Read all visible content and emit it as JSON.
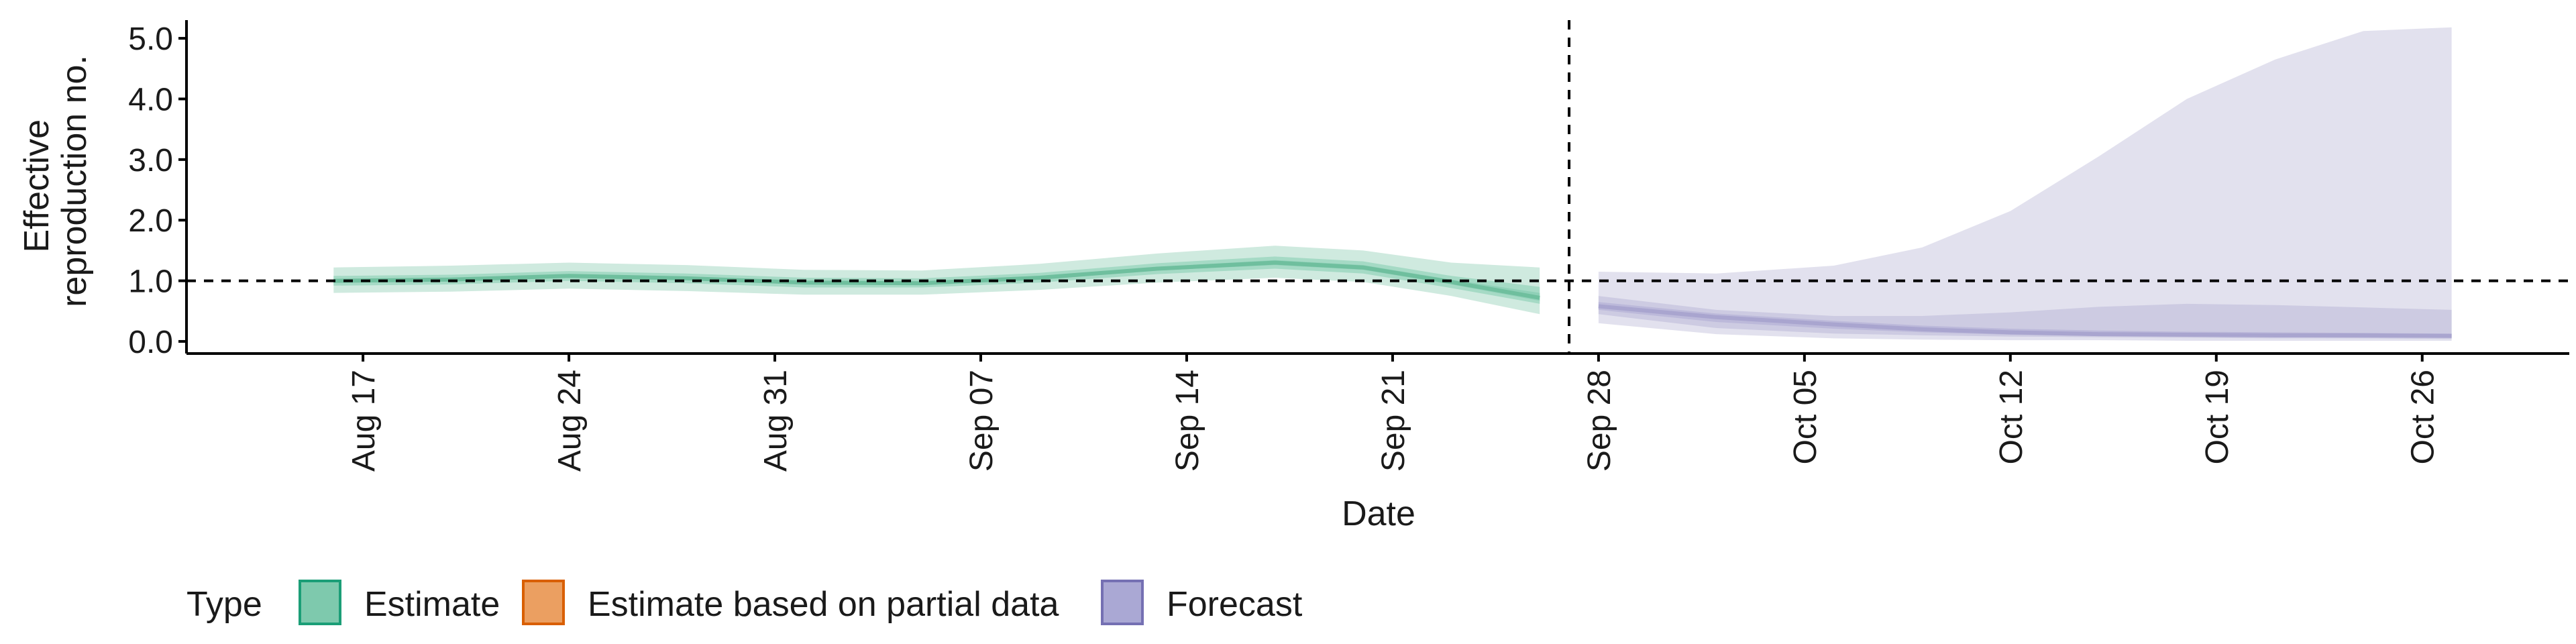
{
  "chart_data": {
    "type": "area",
    "xlabel": "Date",
    "ylabel": [
      "Effective",
      "reproduction no."
    ],
    "ylim": [
      -0.2,
      5.3
    ],
    "yticks": [
      0.0,
      1.0,
      2.0,
      3.0,
      4.0,
      5.0
    ],
    "ytick_labels": [
      "0.0",
      "1.0",
      "2.0",
      "3.0",
      "4.0",
      "5.0"
    ],
    "xlim": [
      "2020-08-11",
      "2020-10-31"
    ],
    "xticks": [
      "2020-08-17",
      "2020-08-24",
      "2020-08-31",
      "2020-09-07",
      "2020-09-14",
      "2020-09-21",
      "2020-09-28",
      "2020-10-05",
      "2020-10-12",
      "2020-10-19",
      "2020-10-26"
    ],
    "xtick_labels": [
      "Aug 17",
      "Aug 24",
      "Aug 31",
      "Sep 07",
      "Sep 14",
      "Sep 21",
      "Sep 28",
      "Oct 05",
      "Oct 12",
      "Oct 19",
      "Oct 26"
    ],
    "reference_hline": 1.0,
    "reference_vline": "2020-09-27",
    "grid": false,
    "legend": {
      "title": "Type",
      "placement": "bottom",
      "entries": [
        {
          "label": "Estimate",
          "fill": "#7ec9ad",
          "stroke": "#1b9e77"
        },
        {
          "label": "Estimate based on partial data",
          "fill": "#eb9f61",
          "stroke": "#d95f02"
        },
        {
          "label": "Forecast",
          "fill": "#aaa8d4",
          "stroke": "#7570b3"
        }
      ]
    },
    "series": [
      {
        "name": "Estimate",
        "colors": {
          "outer": "#cfeadf",
          "mid": "#a5dac5",
          "inner": "#8fd0b7",
          "median": "#6fbf9e"
        },
        "points": [
          {
            "x": "2020-08-16",
            "median": 1.0,
            "lo90": 0.8,
            "hi90": 1.22,
            "lo50": 0.92,
            "hi50": 1.08,
            "lo20": 0.97,
            "hi20": 1.03
          },
          {
            "x": "2020-08-20",
            "median": 1.02,
            "lo90": 0.82,
            "hi90": 1.25,
            "lo50": 0.94,
            "hi50": 1.1,
            "lo20": 0.99,
            "hi20": 1.05
          },
          {
            "x": "2020-08-24",
            "median": 1.08,
            "lo90": 0.87,
            "hi90": 1.3,
            "lo50": 1.0,
            "hi50": 1.16,
            "lo20": 1.05,
            "hi20": 1.11
          },
          {
            "x": "2020-08-28",
            "median": 1.04,
            "lo90": 0.83,
            "hi90": 1.26,
            "lo50": 0.96,
            "hi50": 1.12,
            "lo20": 1.01,
            "hi20": 1.07
          },
          {
            "x": "2020-09-01",
            "median": 0.97,
            "lo90": 0.77,
            "hi90": 1.18,
            "lo50": 0.89,
            "hi50": 1.05,
            "lo20": 0.94,
            "hi20": 1.0
          },
          {
            "x": "2020-09-05",
            "median": 0.96,
            "lo90": 0.77,
            "hi90": 1.17,
            "lo50": 0.89,
            "hi50": 1.04,
            "lo20": 0.93,
            "hi20": 0.99
          },
          {
            "x": "2020-09-09",
            "median": 1.05,
            "lo90": 0.85,
            "hi90": 1.28,
            "lo50": 0.97,
            "hi50": 1.13,
            "lo20": 1.02,
            "hi20": 1.08
          },
          {
            "x": "2020-09-13",
            "median": 1.2,
            "lo90": 0.97,
            "hi90": 1.45,
            "lo50": 1.11,
            "hi50": 1.29,
            "lo20": 1.17,
            "hi20": 1.23
          },
          {
            "x": "2020-09-17",
            "median": 1.3,
            "lo90": 1.05,
            "hi90": 1.58,
            "lo50": 1.2,
            "hi50": 1.4,
            "lo20": 1.26,
            "hi20": 1.34
          },
          {
            "x": "2020-09-20",
            "median": 1.22,
            "lo90": 0.98,
            "hi90": 1.5,
            "lo50": 1.12,
            "hi50": 1.32,
            "lo20": 1.18,
            "hi20": 1.26
          },
          {
            "x": "2020-09-23",
            "median": 0.98,
            "lo90": 0.75,
            "hi90": 1.3,
            "lo50": 0.88,
            "hi50": 1.08,
            "lo20": 0.94,
            "hi20": 1.02
          },
          {
            "x": "2020-09-26",
            "median": 0.72,
            "lo90": 0.45,
            "hi90": 1.22,
            "lo50": 0.62,
            "hi50": 0.9,
            "lo20": 0.67,
            "hi20": 0.8
          }
        ]
      },
      {
        "name": "Forecast",
        "colors": {
          "outer": "#e2e1ee",
          "mid": "#cdcbe2",
          "inner": "#bcb9da",
          "median": "#a9a5cf"
        },
        "points": [
          {
            "x": "2020-09-28",
            "median": 0.58,
            "lo90": 0.3,
            "hi90": 1.15,
            "lo50": 0.45,
            "hi50": 0.75,
            "lo20": 0.52,
            "hi20": 0.65
          },
          {
            "x": "2020-10-02",
            "median": 0.4,
            "lo90": 0.12,
            "hi90": 1.12,
            "lo50": 0.22,
            "hi50": 0.52,
            "lo20": 0.32,
            "hi20": 0.46
          },
          {
            "x": "2020-10-06",
            "median": 0.28,
            "lo90": 0.05,
            "hi90": 1.25,
            "lo50": 0.13,
            "hi50": 0.42,
            "lo20": 0.21,
            "hi20": 0.34
          },
          {
            "x": "2020-10-09",
            "median": 0.2,
            "lo90": 0.03,
            "hi90": 1.55,
            "lo50": 0.1,
            "hi50": 0.42,
            "lo20": 0.15,
            "hi20": 0.26
          },
          {
            "x": "2020-10-12",
            "median": 0.15,
            "lo90": 0.02,
            "hi90": 2.15,
            "lo50": 0.08,
            "hi50": 0.48,
            "lo20": 0.11,
            "hi20": 0.21
          },
          {
            "x": "2020-10-15",
            "median": 0.12,
            "lo90": 0.02,
            "hi90": 3.05,
            "lo50": 0.07,
            "hi50": 0.57,
            "lo20": 0.09,
            "hi20": 0.18
          },
          {
            "x": "2020-10-18",
            "median": 0.11,
            "lo90": 0.01,
            "hi90": 4.0,
            "lo50": 0.06,
            "hi50": 0.62,
            "lo20": 0.08,
            "hi20": 0.16
          },
          {
            "x": "2020-10-21",
            "median": 0.1,
            "lo90": 0.01,
            "hi90": 4.65,
            "lo50": 0.05,
            "hi50": 0.6,
            "lo20": 0.07,
            "hi20": 0.15
          },
          {
            "x": "2020-10-24",
            "median": 0.1,
            "lo90": 0.01,
            "hi90": 5.12,
            "lo50": 0.05,
            "hi50": 0.56,
            "lo20": 0.06,
            "hi20": 0.14
          },
          {
            "x": "2020-10-27",
            "median": 0.09,
            "lo90": 0.01,
            "hi90": 5.18,
            "lo50": 0.04,
            "hi50": 0.52,
            "lo20": 0.06,
            "hi20": 0.13
          }
        ]
      }
    ]
  }
}
